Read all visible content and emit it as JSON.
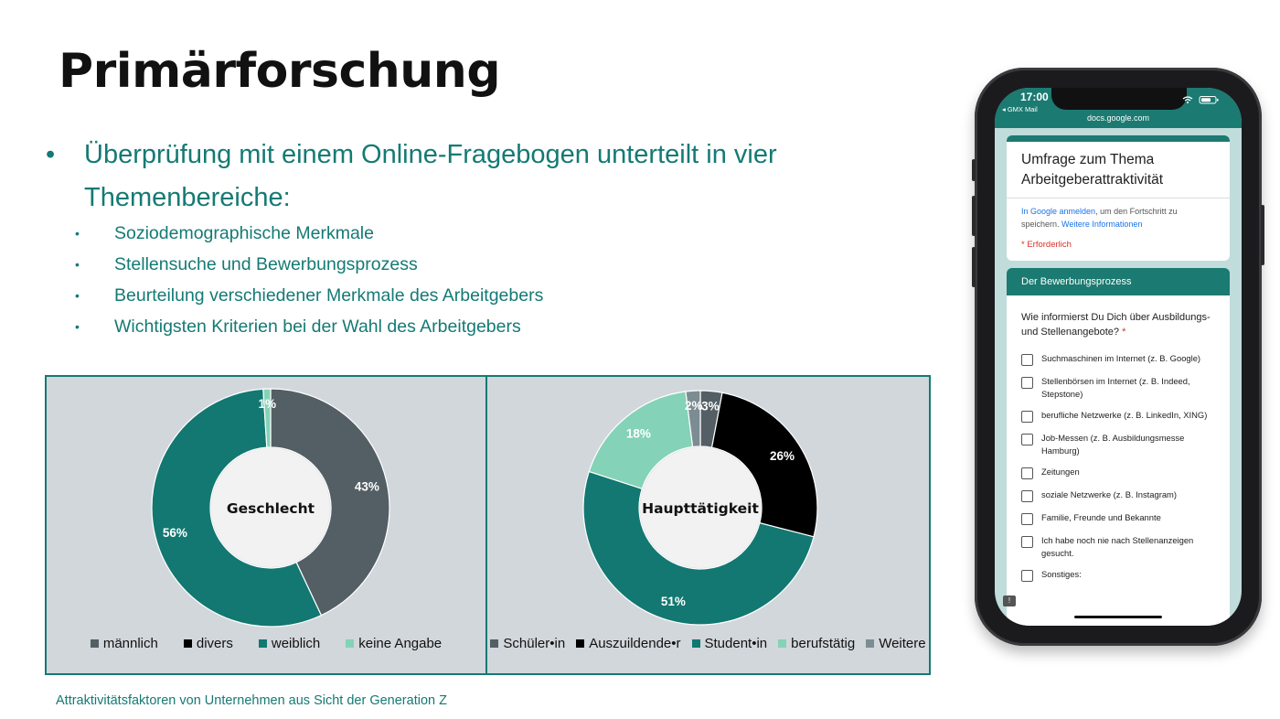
{
  "slide": {
    "title": "Primärforschung",
    "main_bullet": "Überprüfung mit einem Online-Fragebogen unterteilt in vier Themenbereiche:",
    "sub_bullets": [
      "Soziodemographische Merkmale",
      "Stellensuche und Bewerbungsprozess",
      "Beurteilung verschiedener Merkmale des Arbeitgebers",
      "Wichtigsten Kriterien bei der Wahl des Arbeitgebers"
    ],
    "bullet_glyph": "•",
    "footer": "Attraktivitätsfaktoren von Unternehmen aus Sicht der Generation Z"
  },
  "chart_data": [
    {
      "type": "pie",
      "variant": "donut",
      "center_label": "Geschlecht",
      "categories": [
        "männlich",
        "divers",
        "weiblich",
        "keine Angabe"
      ],
      "values": [
        43,
        0,
        56,
        1
      ],
      "value_labels": [
        "43%",
        "",
        "56%",
        "1%"
      ],
      "colors": [
        "#535f65",
        "#000000",
        "#127871",
        "#84d2b7"
      ],
      "legend_position": "bottom"
    },
    {
      "type": "pie",
      "variant": "donut",
      "center_label": "Haupttätigkeit",
      "categories": [
        "Schüler•in",
        "Auszuildende•r",
        "Student•in",
        "berufstätig",
        "Weitere"
      ],
      "values": [
        3,
        26,
        51,
        18,
        2
      ],
      "value_labels": [
        "3%",
        "26%",
        "51%",
        "18%",
        "2%"
      ],
      "colors": [
        "#535f65",
        "#000000",
        "#127871",
        "#84d2b7",
        "#7c8c92"
      ],
      "legend_position": "bottom"
    }
  ],
  "phone": {
    "time": "17:00",
    "back_app": "◂ GMX Mail",
    "url": "docs.google.com",
    "form_title": "Umfrage zum Thema Arbeitgeberattraktivität",
    "signin_link": "In Google anmelden",
    "signin_text": ", um den Fortschritt zu speichern.",
    "more_info_link": "Weitere Informationen",
    "required_note": "* Erforderlich",
    "section_title": "Der Bewerbungsprozess",
    "question": "Wie informierst Du Dich über Ausbildungs- und Stellenangebote?",
    "question_star": "*",
    "feedback_glyph": "!",
    "options": [
      "Suchmaschinen im Internet (z. B. Google)",
      "Stellenbörsen im Internet (z. B. Indeed, Stepstone)",
      "berufliche Netzwerke (z. B. LinkedIn, XING)",
      "Job-Messen (z. B. Ausbildungsmesse Hamburg)",
      "Zeitungen",
      "soziale Netzwerke (z. B. Instagram)",
      "Familie, Freunde und Bekannte",
      "Ich habe noch nie nach Stellenanzeigen gesucht.",
      "Sonstiges:"
    ]
  }
}
